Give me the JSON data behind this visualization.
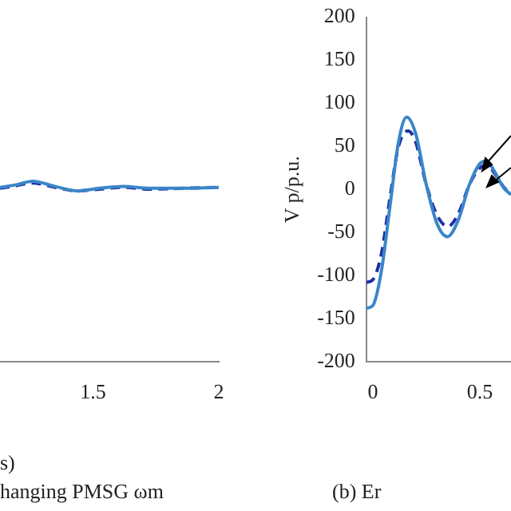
{
  "chart_data": [
    {
      "type": "line",
      "xlabel": "s)",
      "annotations": [
        "hanging PMSG ωm"
      ],
      "xlim": [
        1.13,
        2
      ],
      "xticks": [
        1.5,
        2
      ],
      "ylim": [
        -200,
        200
      ],
      "tick_labels": "x",
      "series": [
        {
          "color": "#3a86c8",
          "line_style": "solid",
          "x": [
            1.13,
            1.195,
            1.26,
            1.35,
            1.44,
            1.525,
            1.62,
            1.73,
            1.86,
            2
          ],
          "values": [
            -3,
            0,
            4,
            -2,
            -7,
            -4,
            -2,
            -4,
            -4,
            -3
          ]
        },
        {
          "color": "#1c2fa8",
          "line_style": "dashed",
          "x": [
            1.13,
            1.195,
            1.26,
            1.35,
            1.44,
            1.525,
            1.62,
            1.73,
            1.86,
            2
          ],
          "values": [
            -4,
            -1,
            2,
            -3,
            -7,
            -5,
            -3,
            -5,
            -4,
            -3
          ]
        }
      ]
    },
    {
      "type": "line",
      "ylabel": "V p/p.u.",
      "annotations": [
        "(b) Er"
      ],
      "xlim": [
        -0.03,
        0.645
      ],
      "xticks": [
        0,
        0.5
      ],
      "ylim": [
        -200,
        200
      ],
      "yticks": [
        -200,
        -150,
        -100,
        -50,
        0,
        50,
        100,
        150,
        200
      ],
      "series": [
        {
          "color": "#3a86c8",
          "line_style": "solid",
          "x": [
            -0.03,
            0,
            0.04,
            0.08,
            0.12,
            0.158,
            0.2,
            0.25,
            0.3,
            0.348,
            0.4,
            0.45,
            0.5,
            0.53,
            0.57,
            0.61,
            0.645
          ],
          "values": [
            -138,
            -135,
            -95,
            -20,
            55,
            84,
            65,
            5,
            -40,
            -55,
            -35,
            5,
            30,
            33,
            20,
            2,
            -6
          ]
        },
        {
          "color": "#1c2fa8",
          "line_style": "dashed",
          "x": [
            -0.03,
            0,
            0.04,
            0.08,
            0.12,
            0.165,
            0.2,
            0.25,
            0.3,
            0.35,
            0.4,
            0.45,
            0.5,
            0.535,
            0.57,
            0.61,
            0.645
          ],
          "values": [
            -108,
            -105,
            -75,
            -10,
            50,
            68,
            55,
            5,
            -30,
            -43,
            -28,
            5,
            25,
            28,
            18,
            3,
            -5
          ]
        }
      ]
    }
  ]
}
